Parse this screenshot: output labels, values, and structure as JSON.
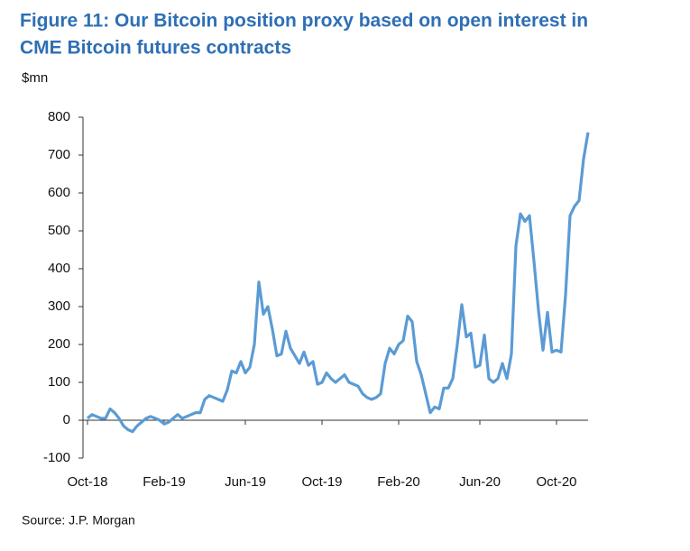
{
  "chart_data": {
    "type": "line",
    "title": "Figure 11: Our Bitcoin position proxy based on open interest in",
    "subtitle": "CME Bitcoin futures contracts",
    "y_label": "$mn",
    "source": "Source: J.P. Morgan",
    "categories": [
      "Oct-18",
      null,
      null,
      null,
      null,
      null,
      null,
      null,
      null,
      null,
      null,
      null,
      null,
      null,
      null,
      null,
      null,
      "Feb-19",
      null,
      null,
      null,
      null,
      null,
      null,
      null,
      null,
      null,
      null,
      null,
      null,
      null,
      null,
      null,
      null,
      null,
      "Jun-19",
      null,
      null,
      null,
      null,
      null,
      null,
      null,
      null,
      null,
      null,
      null,
      null,
      null,
      null,
      null,
      null,
      "Oct-19",
      null,
      null,
      null,
      null,
      null,
      null,
      null,
      null,
      null,
      null,
      null,
      null,
      null,
      null,
      null,
      null,
      "Feb-20",
      null,
      null,
      null,
      null,
      null,
      null,
      null,
      null,
      null,
      null,
      null,
      null,
      null,
      null,
      null,
      null,
      null,
      "Jun-20",
      null,
      null,
      null,
      null,
      null,
      null,
      null,
      null,
      null,
      null,
      null,
      null,
      null,
      null,
      null,
      null,
      "Oct-20",
      null,
      null,
      null,
      null,
      null,
      null,
      null
    ],
    "series": [
      {
        "name": "Bitcoin position proxy",
        "color": "#5b9bd5",
        "values": [
          5,
          15,
          10,
          5,
          5,
          30,
          20,
          5,
          -15,
          -25,
          -30,
          -15,
          -5,
          5,
          10,
          5,
          0,
          -10,
          -5,
          5,
          15,
          5,
          10,
          15,
          20,
          20,
          55,
          65,
          60,
          55,
          50,
          80,
          130,
          125,
          155,
          125,
          140,
          200,
          365,
          280,
          300,
          240,
          170,
          175,
          235,
          190,
          170,
          150,
          180,
          145,
          155,
          95,
          100,
          125,
          110,
          100,
          110,
          120,
          100,
          95,
          90,
          70,
          60,
          55,
          60,
          70,
          150,
          190,
          175,
          200,
          210,
          275,
          260,
          155,
          120,
          70,
          20,
          35,
          30,
          85,
          85,
          110,
          200,
          305,
          220,
          230,
          140,
          145,
          225,
          110,
          100,
          110,
          150,
          110,
          175,
          460,
          545,
          525,
          540,
          420,
          290,
          185,
          285,
          180,
          185,
          180,
          330,
          540,
          565,
          580,
          690,
          760
        ]
      }
    ],
    "ylim": [
      -100,
      800
    ],
    "yticks": [
      -100,
      0,
      100,
      200,
      300,
      400,
      500,
      600,
      700,
      800
    ],
    "grid": false
  }
}
